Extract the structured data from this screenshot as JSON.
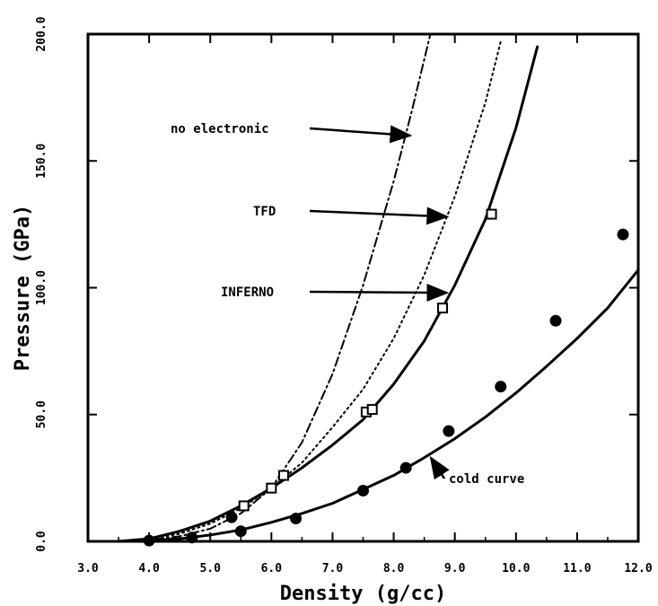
{
  "chart_data": {
    "type": "line",
    "title": "",
    "xlabel": "Density (g/cc)",
    "ylabel": "Pressure (GPa)",
    "xlim": [
      3.0,
      12.0
    ],
    "ylim": [
      0,
      200
    ],
    "xticks": [
      "3.0",
      "4.0",
      "5.0",
      "6.0",
      "7.0",
      "8.0",
      "9.0",
      "10.0",
      "11.0",
      "12.0"
    ],
    "yticks": [
      "0.0",
      "50.0",
      "100.0",
      "150.0",
      "200.0"
    ],
    "grid": false,
    "series": [
      {
        "name": "no electronic",
        "style": "dashdot",
        "x": [
          3.5,
          4.0,
          4.5,
          5.0,
          5.5,
          6.0,
          6.5,
          7.0,
          7.5,
          8.0,
          8.3,
          8.6
        ],
        "y": [
          0,
          0.5,
          2,
          5,
          11,
          21,
          39,
          66,
          101,
          142,
          170,
          200
        ]
      },
      {
        "name": "TFD",
        "style": "dotted",
        "x": [
          3.5,
          4.0,
          4.5,
          5.0,
          5.5,
          6.0,
          6.5,
          7.0,
          7.5,
          8.0,
          8.5,
          9.0,
          9.5,
          9.75
        ],
        "y": [
          0,
          0.8,
          3,
          7,
          13,
          21,
          31,
          45,
          60,
          80,
          105,
          136,
          173,
          197
        ]
      },
      {
        "name": "INFERNO",
        "style": "solid",
        "x": [
          3.5,
          4.0,
          4.5,
          5.0,
          5.5,
          6.0,
          6.5,
          7.0,
          7.5,
          8.0,
          8.5,
          9.0,
          9.5,
          10.0,
          10.35
        ],
        "y": [
          0,
          1,
          4,
          8,
          14,
          21,
          29,
          38,
          48,
          62,
          79,
          101,
          127,
          163,
          195
        ]
      },
      {
        "name": "cold curve",
        "style": "solid",
        "x": [
          3.5,
          4.0,
          4.5,
          5.0,
          5.5,
          6.0,
          6.5,
          7.0,
          7.5,
          8.0,
          8.5,
          9.0,
          9.5,
          10.0,
          10.5,
          11.0,
          11.5,
          12.0
        ],
        "y": [
          0,
          0.3,
          1,
          2.5,
          4.5,
          7.5,
          11,
          15,
          20.5,
          26,
          33,
          40.5,
          49,
          58.5,
          69,
          80,
          92,
          107
        ]
      }
    ],
    "markers": [
      {
        "series": "INFERNO",
        "shape": "square",
        "x": [
          5.55,
          6.0,
          6.2,
          7.55,
          7.65,
          8.8,
          9.6
        ],
        "y": [
          14,
          21,
          26,
          51,
          52,
          92,
          129
        ]
      },
      {
        "series": "cold curve",
        "shape": "filled-circle",
        "x": [
          4.0,
          4.7,
          5.35,
          5.5,
          6.4,
          7.5,
          8.2,
          8.9,
          9.75,
          10.65,
          11.75
        ],
        "y": [
          0.3,
          1.5,
          9.5,
          4,
          9,
          20,
          29,
          43.5,
          61,
          87,
          121
        ]
      }
    ],
    "annotations": [
      {
        "text": "no electronic",
        "target_x": 8.3,
        "target_y": 160
      },
      {
        "text": "TFD",
        "target_x": 8.9,
        "target_y": 128
      },
      {
        "text": "INFERNO",
        "target_x": 8.9,
        "target_y": 98
      },
      {
        "text": "cold curve",
        "target_x": 8.55,
        "target_y": 34
      }
    ]
  }
}
